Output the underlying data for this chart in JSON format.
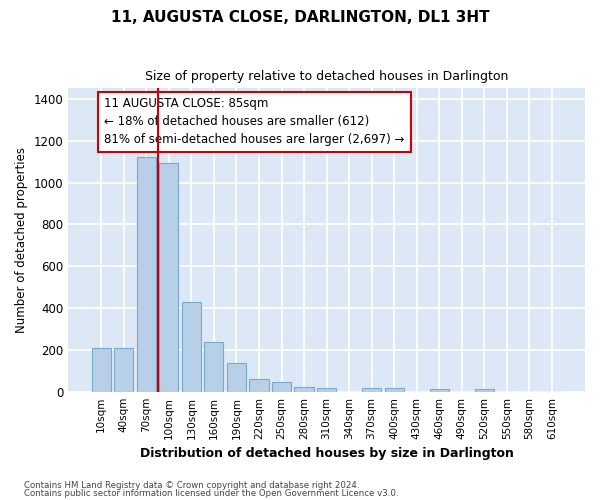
{
  "title": "11, AUGUSTA CLOSE, DARLINGTON, DL1 3HT",
  "subtitle": "Size of property relative to detached houses in Darlington",
  "xlabel": "Distribution of detached houses by size in Darlington",
  "ylabel": "Number of detached properties",
  "bar_color": "#b8cfe8",
  "bar_edge_color": "#7aaad0",
  "background_color": "#dce8f5",
  "grid_color": "#ffffff",
  "annotation_line_color": "#cc0000",
  "annotation_box_color": "#cc0000",
  "annotation_text": "11 AUGUSTA CLOSE: 85sqm\n← 18% of detached houses are smaller (612)\n81% of semi-detached houses are larger (2,697) →",
  "property_sqm": 85,
  "categories": [
    "10sqm",
    "40sqm",
    "70sqm",
    "100sqm",
    "130sqm",
    "160sqm",
    "190sqm",
    "220sqm",
    "250sqm",
    "280sqm",
    "310sqm",
    "340sqm",
    "370sqm",
    "400sqm",
    "430sqm",
    "460sqm",
    "490sqm",
    "520sqm",
    "550sqm",
    "580sqm",
    "610sqm"
  ],
  "values": [
    210,
    210,
    1120,
    1095,
    430,
    240,
    140,
    60,
    45,
    25,
    20,
    0,
    20,
    20,
    0,
    15,
    0,
    15,
    0,
    0,
    0
  ],
  "ylim": [
    0,
    1450
  ],
  "yticks": [
    0,
    200,
    400,
    600,
    800,
    1000,
    1200,
    1400
  ],
  "footer1": "Contains HM Land Registry data © Crown copyright and database right 2024.",
  "footer2": "Contains public sector information licensed under the Open Government Licence v3.0."
}
